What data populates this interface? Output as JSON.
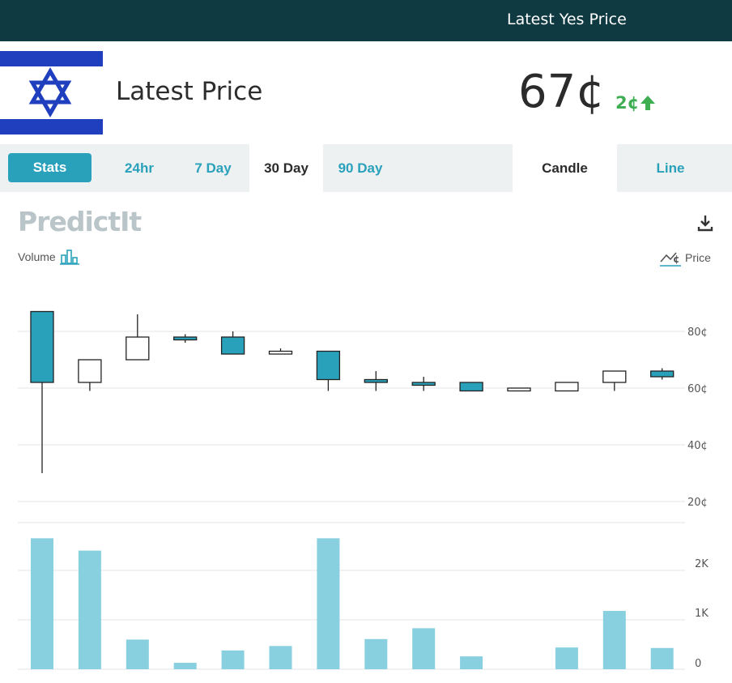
{
  "topbar": {
    "title": "Latest Yes Price"
  },
  "header": {
    "label": "Latest Price",
    "price": "67¢",
    "change": "2¢",
    "flag_icon": "israel-flag-icon",
    "flag_colors": {
      "blue": "#1f3fbf",
      "white": "#ffffff"
    },
    "change_color": "#3fae52"
  },
  "tabs": {
    "stats": "Stats",
    "ranges": [
      "24hr",
      "7 Day",
      "30 Day",
      "90 Day"
    ],
    "active_range": "30 Day",
    "views": [
      "Candle",
      "Line"
    ],
    "active_view": "Candle"
  },
  "toolbar": {
    "logo_text": "PredictIt",
    "volume_label": "Volume",
    "price_label": "Price",
    "download_icon": "download-icon",
    "volume_icon": "bar-chart-icon",
    "price_icon": "line-chart-icon"
  },
  "colors": {
    "accent": "#2aa1bb",
    "dark": "#103a42",
    "volume_bar": "#88d0e0",
    "candle_down": "#2aa1bb",
    "candle_up": "#ffffff"
  },
  "chart_data": [
    {
      "type": "candlestick",
      "title": "",
      "ylabel": "",
      "y_ticks": [
        "80¢",
        "60¢",
        "40¢",
        "20¢"
      ],
      "ylim": [
        15,
        98
      ],
      "grid": true,
      "candles": [
        {
          "open": 87,
          "close": 62,
          "high": 87,
          "low": 30
        },
        {
          "open": 62,
          "close": 70,
          "high": 70,
          "low": 59
        },
        {
          "open": 70,
          "close": 78,
          "high": 86,
          "low": 70
        },
        {
          "open": 78,
          "close": 77,
          "high": 79,
          "low": 76
        },
        {
          "open": 78,
          "close": 72,
          "high": 80,
          "low": 72
        },
        {
          "open": 72,
          "close": 73,
          "high": 74,
          "low": 72
        },
        {
          "open": 73,
          "close": 63,
          "high": 73,
          "low": 59
        },
        {
          "open": 63,
          "close": 62,
          "high": 66,
          "low": 59
        },
        {
          "open": 62,
          "close": 61,
          "high": 64,
          "low": 59
        },
        {
          "open": 62,
          "close": 59,
          "high": 62,
          "low": 59
        },
        {
          "open": 59,
          "close": 60,
          "high": 60,
          "low": 59
        },
        {
          "open": 59,
          "close": 62,
          "high": 62,
          "low": 59
        },
        {
          "open": 62,
          "close": 66,
          "high": 66,
          "low": 59
        },
        {
          "open": 66,
          "close": 64,
          "high": 67,
          "low": 63
        }
      ]
    },
    {
      "type": "bar",
      "title": "",
      "ylabel": "",
      "y_ticks": [
        "2K",
        "1K",
        "0"
      ],
      "ylim": [
        0,
        3000
      ],
      "grid": true,
      "values": [
        2650,
        2400,
        600,
        130,
        380,
        470,
        2650,
        610,
        830,
        260,
        0,
        440,
        1180,
        430
      ]
    }
  ]
}
